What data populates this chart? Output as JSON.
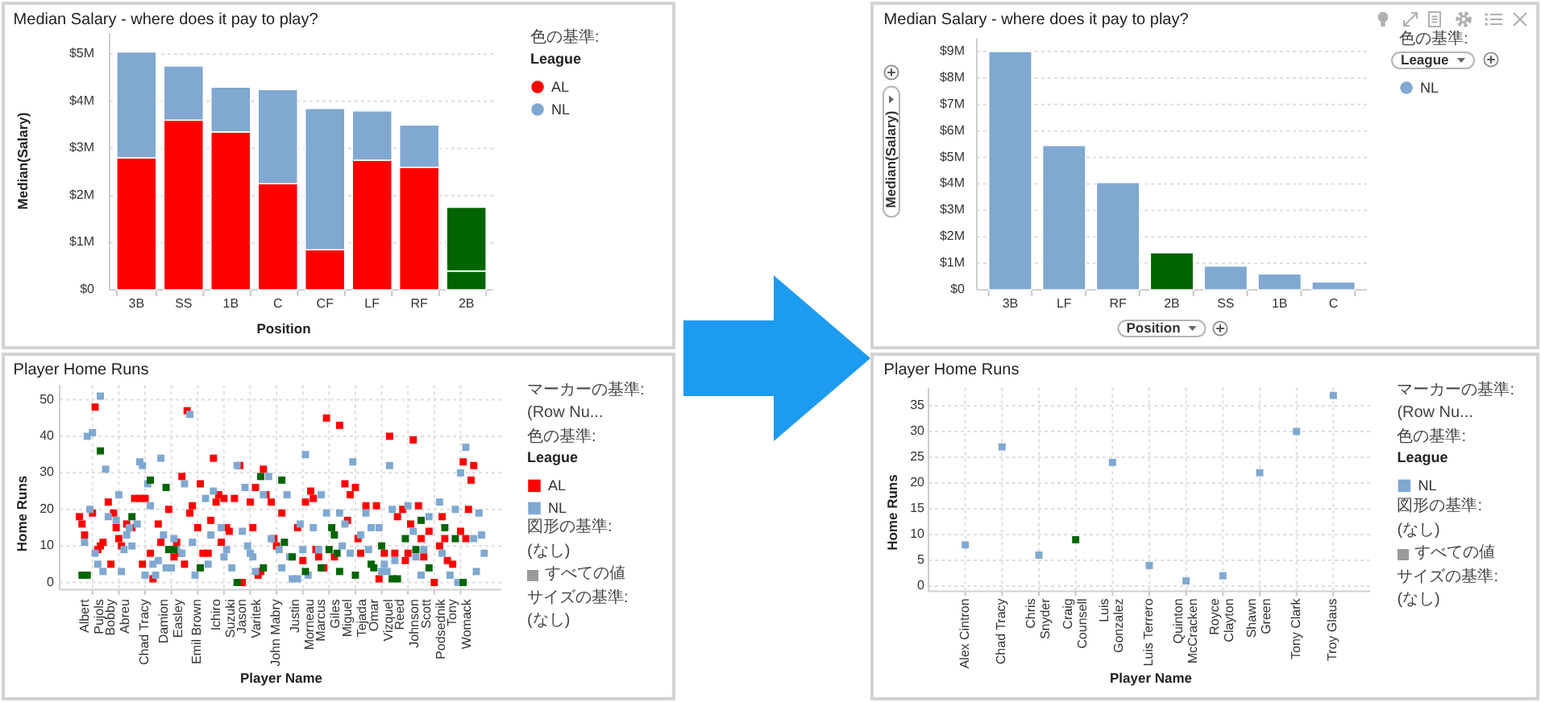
{
  "chart_data": [
    {
      "type": "bar",
      "title": "Median Salary - where does it pay to play?",
      "xlabel": "Position",
      "ylabel": "Median(Salary)",
      "legend_title": "League",
      "annotations": [
        "色の基準:"
      ],
      "categories": [
        "3B",
        "SS",
        "1B",
        "C",
        "CF",
        "LF",
        "RF",
        "2B"
      ],
      "stacked": true,
      "series": [
        {
          "name": "AL",
          "color": "#ff0000",
          "colors": [
            "#ff0000",
            "#ff0000",
            "#ff0000",
            "#ff0000",
            "#ff0000",
            "#ff0000",
            "#ff0000",
            "#006400"
          ],
          "values": [
            2.8,
            3.6,
            3.35,
            2.25,
            0.85,
            2.75,
            2.6,
            0.4
          ]
        },
        {
          "name": "NL",
          "color": "#80a8d0",
          "colors": [
            "#80a8d0",
            "#80a8d0",
            "#80a8d0",
            "#80a8d0",
            "#80a8d0",
            "#80a8d0",
            "#80a8d0",
            "#006400"
          ],
          "values": [
            2.25,
            1.15,
            0.95,
            2.0,
            3.0,
            1.05,
            0.9,
            1.35
          ]
        }
      ],
      "ylim": [
        0,
        5.45
      ],
      "yticks": [
        {
          "value": 0,
          "label": "$0"
        },
        {
          "value": 1,
          "label": "$1M"
        },
        {
          "value": 2,
          "label": "$2M"
        },
        {
          "value": 3,
          "label": "$3M"
        },
        {
          "value": 4,
          "label": "$4M"
        },
        {
          "value": 5,
          "label": "$5M"
        }
      ],
      "grid": "y",
      "legend": "right"
    },
    {
      "type": "bar",
      "title": "Median Salary - where does it pay to play?",
      "xlabel": "Position",
      "ylabel": "Median(Salary)",
      "legend_title": "League",
      "annotations": [
        "色の基準:"
      ],
      "categories": [
        "3B",
        "LF",
        "RF",
        "2B",
        "SS",
        "1B",
        "C"
      ],
      "series": [
        {
          "name": "NL",
          "color": "#80a8d0",
          "colors": [
            "#80a8d0",
            "#80a8d0",
            "#80a8d0",
            "#006400",
            "#80a8d0",
            "#80a8d0",
            "#80a8d0"
          ],
          "values": [
            9.0,
            5.45,
            4.05,
            1.4,
            0.9,
            0.6,
            0.3
          ]
        }
      ],
      "ylim": [
        0,
        9.5
      ],
      "yticks": [
        {
          "value": 0,
          "label": "$0"
        },
        {
          "value": 1,
          "label": "$1M"
        },
        {
          "value": 2,
          "label": "$2M"
        },
        {
          "value": 3,
          "label": "$3M"
        },
        {
          "value": 4,
          "label": "$4M"
        },
        {
          "value": 5,
          "label": "$5M"
        },
        {
          "value": 6,
          "label": "$6M"
        },
        {
          "value": 7,
          "label": "$7M"
        },
        {
          "value": 8,
          "label": "$8M"
        },
        {
          "value": 9,
          "label": "$9M"
        }
      ],
      "grid": "y",
      "legend": "right"
    },
    {
      "type": "scatter",
      "title": "Player Home Runs",
      "xlabel": "Player Name",
      "ylabel": "Home Runs",
      "legend_title": "League",
      "annotations": [
        "マーカーの基準:",
        "(Row Nu...",
        "色の基準:",
        "図形の基準:",
        "(なし)",
        "すべての値",
        "サイズの基準:",
        "(なし)"
      ],
      "categories": [
        null,
        null,
        null,
        null,
        null,
        null,
        null,
        null,
        null,
        null,
        null,
        null,
        "Albert Pujols",
        null,
        null,
        null,
        null,
        null,
        null,
        null,
        null,
        null,
        "Bobby Abreu",
        null,
        null,
        null,
        null,
        null,
        null,
        null,
        null,
        null,
        "Chad Tracy",
        null,
        null,
        null,
        null,
        null,
        null,
        null,
        null,
        null,
        "Damion Easley",
        null,
        null,
        null,
        null,
        null,
        null,
        null,
        null,
        null,
        "Emil Brown",
        null,
        null,
        null,
        null,
        null,
        null,
        null,
        null,
        null,
        "Ichiro Suzuki",
        null,
        null,
        null,
        null,
        null,
        null,
        null,
        null,
        null,
        "Jason Varitek",
        null,
        null,
        null,
        null,
        null,
        null,
        null,
        null,
        null,
        "John Mabry",
        null,
        null,
        null,
        null,
        null,
        null,
        null,
        null,
        null,
        "Justin Morneau",
        null,
        null,
        null,
        null,
        null,
        null,
        null,
        null,
        null,
        "Marcus Giles",
        null,
        null,
        null,
        null,
        null,
        null,
        null,
        null,
        null,
        "Miguel Tejada",
        null,
        null,
        null,
        null,
        null,
        null,
        null,
        null,
        null,
        "Omar Vizquel",
        null,
        null,
        null,
        null,
        null,
        null,
        null,
        null,
        null,
        "Reed Johnson",
        null,
        null,
        null,
        null,
        null,
        null,
        null,
        null,
        null,
        "Scott Podsednik",
        null,
        null,
        null,
        null,
        null,
        null,
        null,
        null,
        null,
        "Tony Womack",
        null,
        null,
        null,
        null,
        null,
        null,
        null,
        null,
        null,
        null,
        null,
        null,
        null,
        null,
        null
      ],
      "series": [
        {
          "name": "AL",
          "color": "#ff0000",
          "values": [
            null,
            null,
            null,
            null,
            null,
            null,
            null,
            18,
            16,
            13,
            null,
            null,
            19,
            48,
            9,
            10,
            11,
            null,
            22,
            5,
            19,
            15,
            12,
            10,
            null,
            16,
            null,
            15,
            23,
            null,
            23,
            5,
            23,
            null,
            8,
            1,
            null,
            16,
            11,
            null,
            null,
            20,
            null,
            7,
            11,
            8,
            29,
            5,
            47,
            19,
            21,
            null,
            15,
            27,
            8,
            null,
            8,
            17,
            34,
            22,
            24,
            11,
            23,
            15,
            14,
            null,
            23,
            null,
            32,
            0,
            null,
            null,
            22,
            15,
            26,
            2,
            3,
            31,
            24,
            null,
            22,
            12,
            10,
            null,
            19,
            null,
            null,
            null,
            null,
            null,
            15,
            null,
            6,
            22,
            null,
            25,
            23,
            9,
            7,
            null,
            4,
            45,
            null,
            null,
            7,
            null,
            43,
            null,
            27,
            17,
            24,
            null,
            26,
            12,
            8,
            null,
            21,
            null,
            null,
            null,
            21,
            1,
            null,
            8,
            null,
            40,
            null,
            8,
            18,
            null,
            20,
            6,
            8,
            16,
            39,
            null,
            21,
            12,
            7,
            null,
            14,
            null,
            0,
            null,
            10,
            18,
            12,
            6,
            null,
            5,
            null,
            null,
            14,
            33,
            12,
            20,
            28,
            32,
            null,
            null,
            null,
            null,
            null,
            null,
            null,
            null,
            null,
            null
          ]
        },
        {
          "name": "NL",
          "color": "#80a8d0",
          "values": [
            null,
            null,
            null,
            null,
            null,
            null,
            null,
            null,
            null,
            11,
            40,
            20,
            41,
            8,
            5,
            51,
            3,
            31,
            18,
            null,
            null,
            17,
            24,
            3,
            9,
            13,
            15,
            10,
            null,
            16,
            33,
            32,
            2,
            27,
            21,
            5,
            2,
            6,
            34,
            13,
            4,
            null,
            4,
            12,
            9,
            null,
            8,
            27,
            null,
            46,
            11,
            2,
            null,
            null,
            null,
            23,
            5,
            13,
            25,
            null,
            null,
            15,
            7,
            9,
            null,
            4,
            null,
            32,
            null,
            14,
            26,
            10,
            8,
            7,
            3,
            null,
            null,
            24,
            null,
            29,
            12,
            null,
            null,
            9,
            4,
            null,
            24,
            7,
            1,
            null,
            1,
            16,
            9,
            35,
            2,
            null,
            15,
            null,
            9,
            24,
            null,
            19,
            null,
            null,
            null,
            null,
            19,
            10,
            16,
            null,
            8,
            33,
            null,
            null,
            13,
            null,
            19,
            9,
            15,
            null,
            null,
            15,
            3,
            5,
            3,
            32,
            20,
            6,
            null,
            null,
            null,
            null,
            21,
            null,
            14,
            7,
            null,
            2,
            9,
            null,
            18,
            null,
            null,
            null,
            22,
            8,
            null,
            null,
            2,
            null,
            20,
            0,
            30,
            null,
            37,
            null,
            null,
            12,
            3,
            19,
            13,
            8,
            null,
            null,
            null,
            null,
            null,
            null
          ]
        },
        {
          "color": "#006400",
          "values": [
            null,
            null,
            null,
            null,
            null,
            null,
            null,
            null,
            2,
            null,
            2,
            null,
            null,
            null,
            null,
            36,
            null,
            null,
            null,
            null,
            null,
            null,
            null,
            null,
            null,
            null,
            null,
            18,
            null,
            null,
            null,
            null,
            null,
            null,
            28,
            null,
            null,
            null,
            null,
            null,
            26,
            9,
            null,
            9,
            null,
            null,
            null,
            null,
            null,
            null,
            null,
            null,
            null,
            4,
            null,
            null,
            null,
            null,
            null,
            null,
            null,
            null,
            null,
            null,
            null,
            null,
            null,
            0,
            null,
            null,
            null,
            null,
            null,
            null,
            null,
            null,
            29,
            4,
            null,
            null,
            null,
            null,
            null,
            null,
            28,
            11,
            null,
            null,
            7,
            null,
            null,
            null,
            null,
            3,
            null,
            null,
            null,
            null,
            null,
            4,
            null,
            null,
            9,
            15,
            13,
            8,
            3,
            null,
            null,
            null,
            null,
            null,
            2,
            null,
            null,
            null,
            null,
            null,
            5,
            4,
            null,
            null,
            10,
            null,
            null,
            null,
            1,
            null,
            1,
            null,
            null,
            12,
            null,
            null,
            null,
            9,
            null,
            17,
            null,
            null,
            4,
            null,
            null,
            null,
            null,
            null,
            15,
            null,
            null,
            null,
            12,
            null,
            null,
            0,
            null,
            null,
            null,
            null,
            null,
            null,
            null,
            null,
            null,
            null,
            null,
            null,
            null,
            null
          ]
        }
      ],
      "ylim": [
        -2,
        54
      ],
      "yticks": [
        0,
        10,
        20,
        30,
        40,
        50
      ],
      "grid": true,
      "marker": "square",
      "legend": "right"
    },
    {
      "type": "scatter",
      "title": "Player Home Runs",
      "xlabel": "Player Name",
      "ylabel": "Home Runs",
      "legend_title": "League",
      "annotations": [
        "マーカーの基準:",
        "(Row Nu...",
        "色の基準:",
        "図形の基準:",
        "(なし)",
        "すべての値",
        "サイズの基準:",
        "(なし)"
      ],
      "categories": [
        "Alex Cintron",
        "Chad Tracy",
        "Chris Snyder",
        "Craig Counsell",
        "Luis Gonzalez",
        "Luis Terrero",
        "Quinton McCracken",
        "Royce Clayton",
        "Shawn Green",
        "Tony Clark",
        "Troy Glaus"
      ],
      "series": [
        {
          "name": "NL",
          "color": "#80a8d0",
          "colors": [
            "#80a8d0",
            "#80a8d0",
            "#80a8d0",
            "#006400",
            "#80a8d0",
            "#80a8d0",
            "#80a8d0",
            "#80a8d0",
            "#80a8d0",
            "#80a8d0",
            "#80a8d0"
          ],
          "values": [
            8,
            27,
            6,
            9,
            24,
            4,
            1,
            2,
            22,
            30,
            37
          ]
        }
      ],
      "ylim": [
        -1,
        38.5
      ],
      "yticks": [
        0,
        5,
        10,
        15,
        20,
        25,
        30,
        35
      ],
      "grid": true,
      "marker": "square",
      "legend": "right"
    }
  ]
}
